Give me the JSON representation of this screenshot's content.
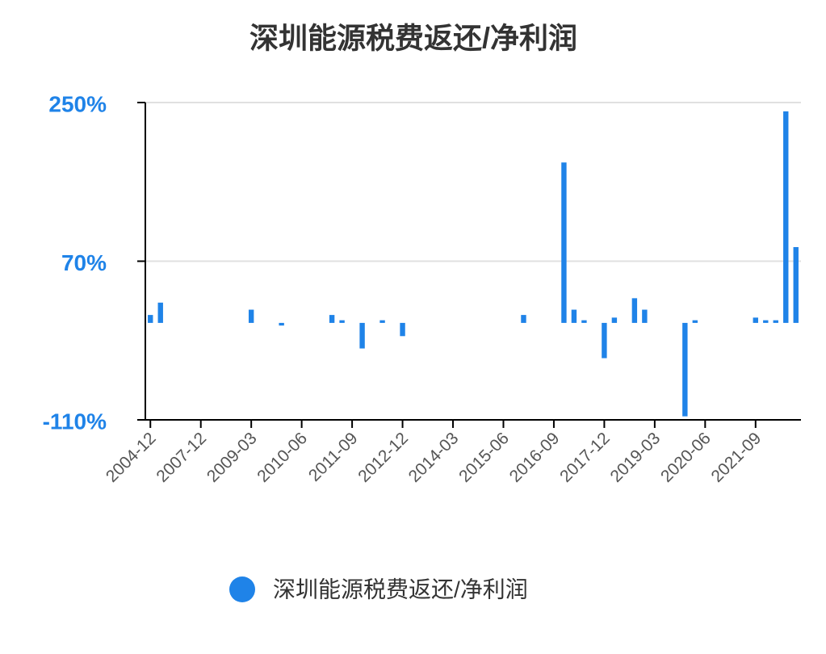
{
  "chart_data": {
    "type": "bar",
    "title": "深圳能源税费返还/净利润",
    "categories": [
      "2004-12",
      null,
      null,
      null,
      null,
      "2007-12",
      null,
      null,
      null,
      null,
      "2009-03",
      null,
      null,
      null,
      null,
      "2010-06",
      null,
      null,
      null,
      null,
      "2011-09",
      null,
      null,
      null,
      null,
      "2012-12",
      null,
      null,
      null,
      null,
      "2014-03",
      null,
      null,
      null,
      null,
      "2015-06",
      null,
      null,
      null,
      null,
      "2016-09",
      null,
      null,
      null,
      null,
      "2017-12",
      null,
      null,
      null,
      null,
      "2019-03",
      null,
      null,
      null,
      null,
      "2020-06",
      null,
      null,
      null,
      null,
      "2021-09",
      null,
      null,
      null,
      null
    ],
    "series": [
      {
        "name": "深圳能源税费返还/净利润",
        "color": "#1f83e8",
        "values": [
          9,
          23,
          null,
          null,
          null,
          null,
          null,
          null,
          null,
          null,
          15,
          null,
          null,
          -3,
          null,
          null,
          null,
          null,
          9,
          3,
          null,
          -29,
          null,
          3,
          null,
          -15,
          null,
          null,
          null,
          null,
          null,
          null,
          null,
          null,
          null,
          null,
          null,
          9,
          null,
          null,
          null,
          182,
          15,
          3,
          null,
          -40,
          6,
          null,
          28,
          15,
          null,
          null,
          null,
          -106,
          3,
          null,
          null,
          null,
          null,
          null,
          6,
          3,
          3,
          240,
          86
        ]
      }
    ],
    "ylim": [
      -110,
      250
    ],
    "yticks": [
      {
        "value": -110,
        "label": "-110%"
      },
      {
        "value": 70,
        "label": "70%"
      },
      {
        "value": 250,
        "label": "250%"
      }
    ],
    "grid": true
  }
}
